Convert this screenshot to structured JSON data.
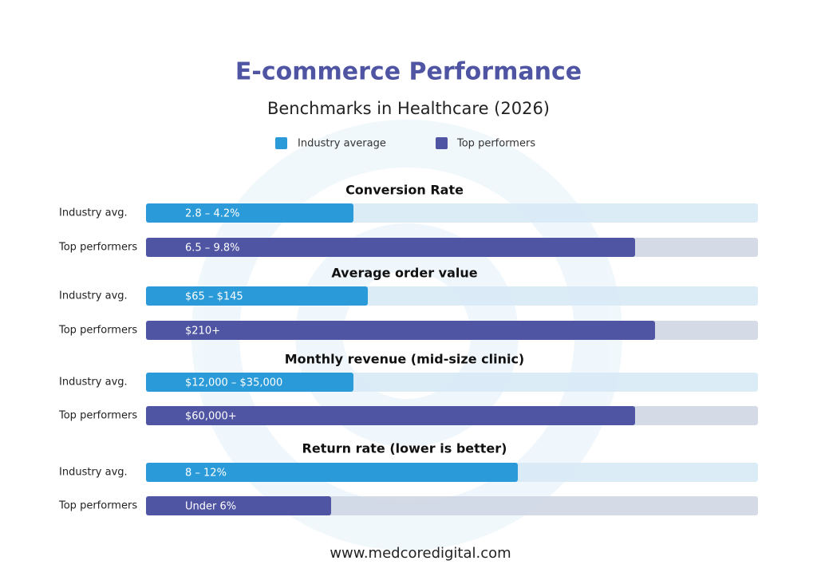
{
  "header": {
    "title": "E-commerce Performance",
    "subtitle": "Benchmarks in Healthcare (2026)"
  },
  "legend": [
    "Industry average",
    "Top  performers"
  ],
  "sections": [
    {
      "title": "Conversion Rate",
      "rows": [
        {
          "label": "Industry avg.",
          "value": "2.8 – 4.2%"
        },
        {
          "label": "Top performers",
          "value": "6.5 – 9.8%"
        }
      ]
    },
    {
      "title": "Average order value",
      "rows": [
        {
          "label": "Industry avg.",
          "value": "$65 – $145"
        },
        {
          "label": "Top performers",
          "value": "$210+"
        }
      ]
    },
    {
      "title": "Monthly revenue (mid-size clinic)",
      "rows": [
        {
          "label": "Industry avg.",
          "value": "$12,000 – $35,000"
        },
        {
          "label": "Top performers",
          "value": "$60,000+"
        }
      ]
    },
    {
      "title": "Return rate (lower is better)",
      "rows": [
        {
          "label": "Industry avg.",
          "value": "8 – 12%"
        },
        {
          "label": "Top performers",
          "value": "Under 6%"
        }
      ]
    }
  ],
  "footer": "www.medcoredigital.com"
}
